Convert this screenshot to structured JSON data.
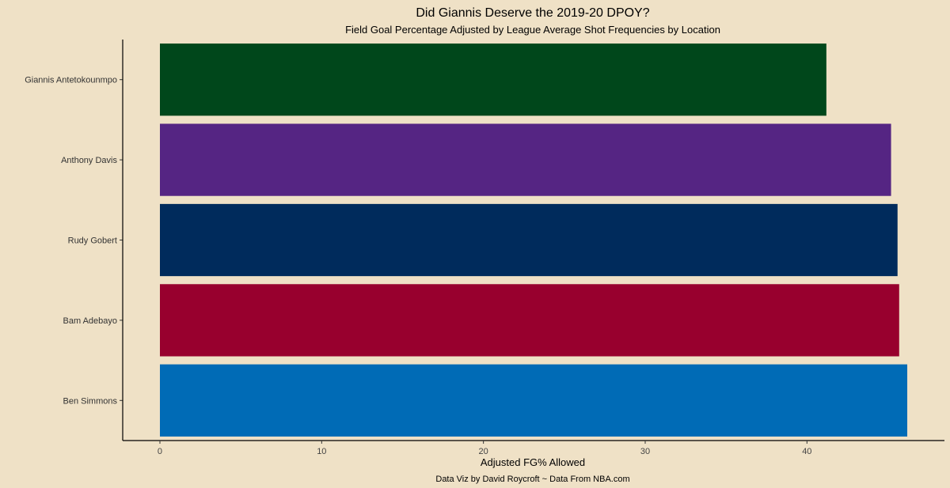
{
  "chart_data": {
    "type": "bar",
    "orientation": "horizontal",
    "title": "Did Giannis Deserve the 2019-20 DPOY?",
    "subtitle": "Field Goal Percentage Adjusted by League Average Shot Frequencies by Location",
    "xlabel": "Adjusted FG% Allowed",
    "ylabel": "",
    "caption": "Data Viz by David Roycroft ~ Data From NBA.com",
    "categories": [
      "Giannis Antetokounmpo",
      "Anthony Davis",
      "Rudy Gobert",
      "Bam Adebayo",
      "Ben Simmons"
    ],
    "values": [
      41.2,
      45.2,
      45.6,
      45.7,
      46.2
    ],
    "colors": [
      "#00471B",
      "#552583",
      "#002B5C",
      "#98002E",
      "#006BB6"
    ],
    "xlim": [
      -2.3,
      48.5
    ],
    "xticks": [
      0,
      10,
      20,
      30,
      40
    ],
    "grid": false,
    "background": "#EFE1C6"
  }
}
